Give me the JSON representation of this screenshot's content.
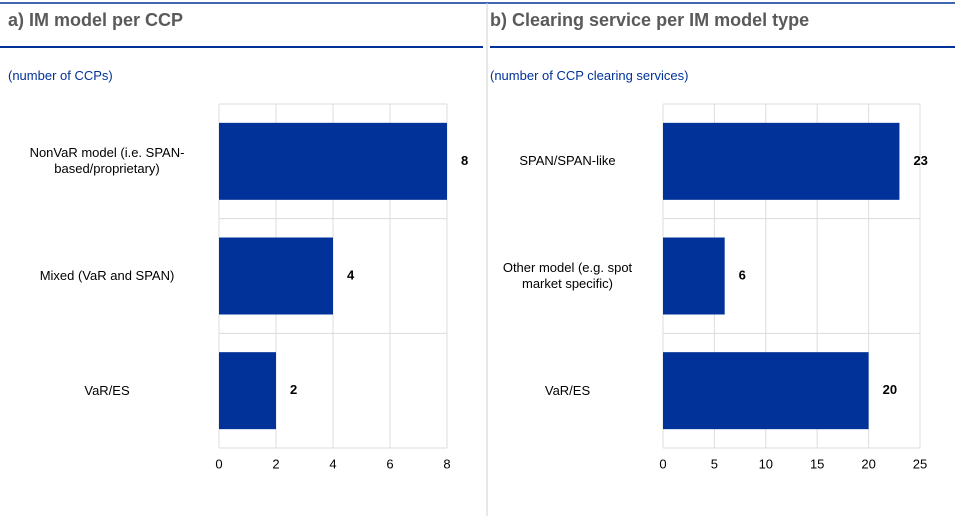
{
  "chart_data": [
    {
      "type": "bar",
      "orientation": "horizontal",
      "title": "a) IM model per CCP",
      "subtitle": "(number of CCPs)",
      "categories": [
        "NonVaR model (i.e. SPAN-based/proprietary)",
        "Mixed (VaR and SPAN)",
        "VaR/ES"
      ],
      "values": [
        8,
        4,
        2
      ],
      "color": "#003299",
      "xlim": [
        0,
        8
      ],
      "xticks": [
        0,
        2,
        4,
        6,
        8
      ],
      "grid": true
    },
    {
      "type": "bar",
      "orientation": "horizontal",
      "title": "b) Clearing service per IM model type",
      "subtitle": "(number of CCP clearing services)",
      "categories": [
        "SPAN/SPAN-like",
        "Other model (e.g. spot market specific)",
        "VaR/ES"
      ],
      "values": [
        23,
        6,
        20
      ],
      "color": "#003299",
      "xlim": [
        0,
        25
      ],
      "xticks": [
        0,
        5,
        10,
        15,
        20,
        25
      ],
      "grid": true
    }
  ]
}
